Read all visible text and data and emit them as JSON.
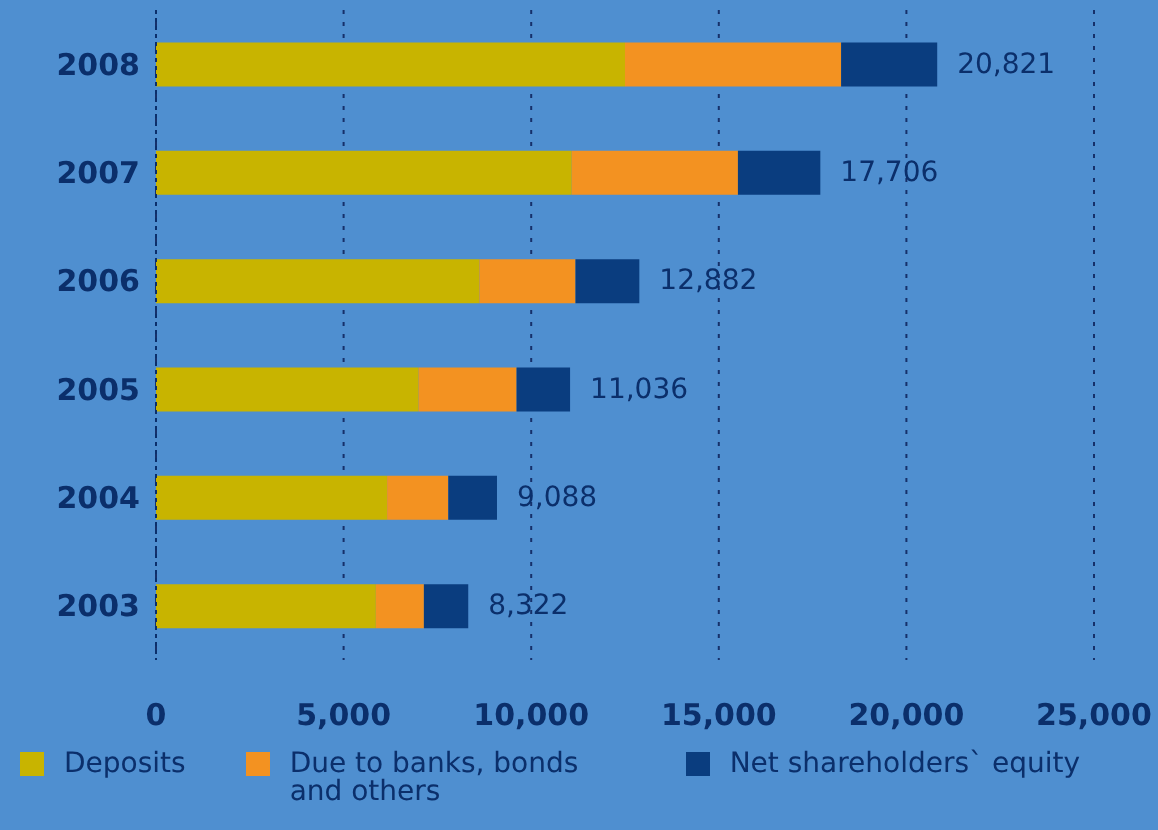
{
  "chart_data": {
    "type": "bar",
    "orientation": "horizontal",
    "stacked": true,
    "categories": [
      "2008",
      "2007",
      "2006",
      "2005",
      "2004",
      "2003"
    ],
    "series": [
      {
        "name": "Deposits",
        "color": "#c8b400",
        "values": [
          12500,
          11080,
          8620,
          7000,
          6160,
          5860
        ]
      },
      {
        "name": "Due to banks, bonds and others",
        "color": "#f39221",
        "values": [
          5760,
          4430,
          2560,
          2610,
          1630,
          1280
        ]
      },
      {
        "name": "Net shareholders` equity",
        "color": "#0a3d7f",
        "values": [
          2561,
          2196,
          1702,
          1426,
          1298,
          1182
        ]
      }
    ],
    "totals": [
      "20,821",
      "17,706",
      "12,882",
      "11,036",
      "9,088",
      "8,322"
    ],
    "xlim": [
      0,
      25000
    ],
    "xticks": [
      {
        "value": 0,
        "label": "0"
      },
      {
        "value": 5000,
        "label": "5,000"
      },
      {
        "value": 10000,
        "label": "10,000"
      },
      {
        "value": 15000,
        "label": "15,000"
      },
      {
        "value": 20000,
        "label": "20,000"
      },
      {
        "value": 25000,
        "label": "25,000"
      }
    ],
    "grid": "x",
    "legend": "bottom"
  }
}
